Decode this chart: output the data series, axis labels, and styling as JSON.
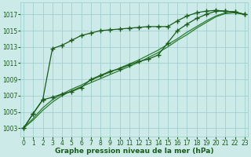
{
  "xlabel": "Graphe pression niveau de la mer (hPa)",
  "ylim": [
    1002.0,
    1018.5
  ],
  "xlim": [
    -0.3,
    23.3
  ],
  "yticks": [
    1003,
    1005,
    1007,
    1009,
    1011,
    1013,
    1015,
    1017
  ],
  "xticks": [
    0,
    1,
    2,
    3,
    4,
    5,
    6,
    7,
    8,
    9,
    10,
    11,
    12,
    13,
    14,
    15,
    16,
    17,
    18,
    19,
    20,
    21,
    22,
    23
  ],
  "background_color": "#cceae8",
  "grid_color": "#99cccc",
  "line_color_dark": "#1a5c1a",
  "line_color_med": "#2e7d32",
  "series": {
    "line_upper_marked": [
      1003.0,
      1004.8,
      1006.5,
      1012.8,
      1013.2,
      1013.8,
      1014.4,
      1014.7,
      1015.0,
      1015.1,
      1015.2,
      1015.3,
      1015.4,
      1015.5,
      1015.5,
      1015.5,
      1016.2,
      1016.8,
      1017.2,
      1017.4,
      1017.5,
      1017.4,
      1017.3,
      1017.0
    ],
    "line_lower_marked": [
      1003.0,
      1004.8,
      1006.5,
      1006.8,
      1007.2,
      1007.5,
      1008.0,
      1009.0,
      1009.5,
      1010.0,
      1010.3,
      1010.8,
      1011.2,
      1011.5,
      1012.0,
      1013.5,
      1015.0,
      1015.8,
      1016.5,
      1017.0,
      1017.4,
      1017.4,
      1017.3,
      1017.0
    ],
    "line_smooth1": [
      1003.0,
      1004.2,
      1005.5,
      1006.5,
      1007.2,
      1007.8,
      1008.3,
      1008.9,
      1009.4,
      1009.9,
      1010.4,
      1010.9,
      1011.4,
      1012.0,
      1012.6,
      1013.3,
      1014.0,
      1014.8,
      1015.5,
      1016.2,
      1016.8,
      1017.2,
      1017.2,
      1017.0
    ],
    "line_smooth2": [
      1003.0,
      1004.0,
      1005.2,
      1006.2,
      1007.0,
      1007.6,
      1008.1,
      1008.6,
      1009.1,
      1009.6,
      1010.1,
      1010.6,
      1011.1,
      1011.7,
      1012.3,
      1013.0,
      1013.8,
      1014.5,
      1015.3,
      1016.0,
      1016.7,
      1017.1,
      1017.2,
      1017.0
    ]
  },
  "marker": "P",
  "marker_size": 3.0,
  "linewidth": 0.9,
  "font_color": "#1a5c1a",
  "font_size_ticks": 5.5,
  "font_size_xlabel": 6.5
}
